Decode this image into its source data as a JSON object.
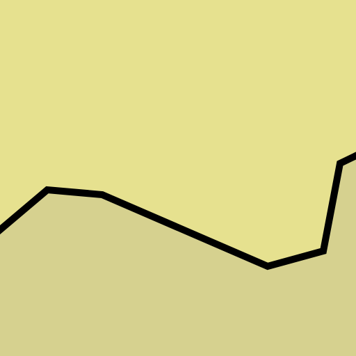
{
  "colors": {
    "upper_region": "#e6e18f",
    "lower_region": "#d6d18f",
    "boundary_line": "#000000"
  }
}
